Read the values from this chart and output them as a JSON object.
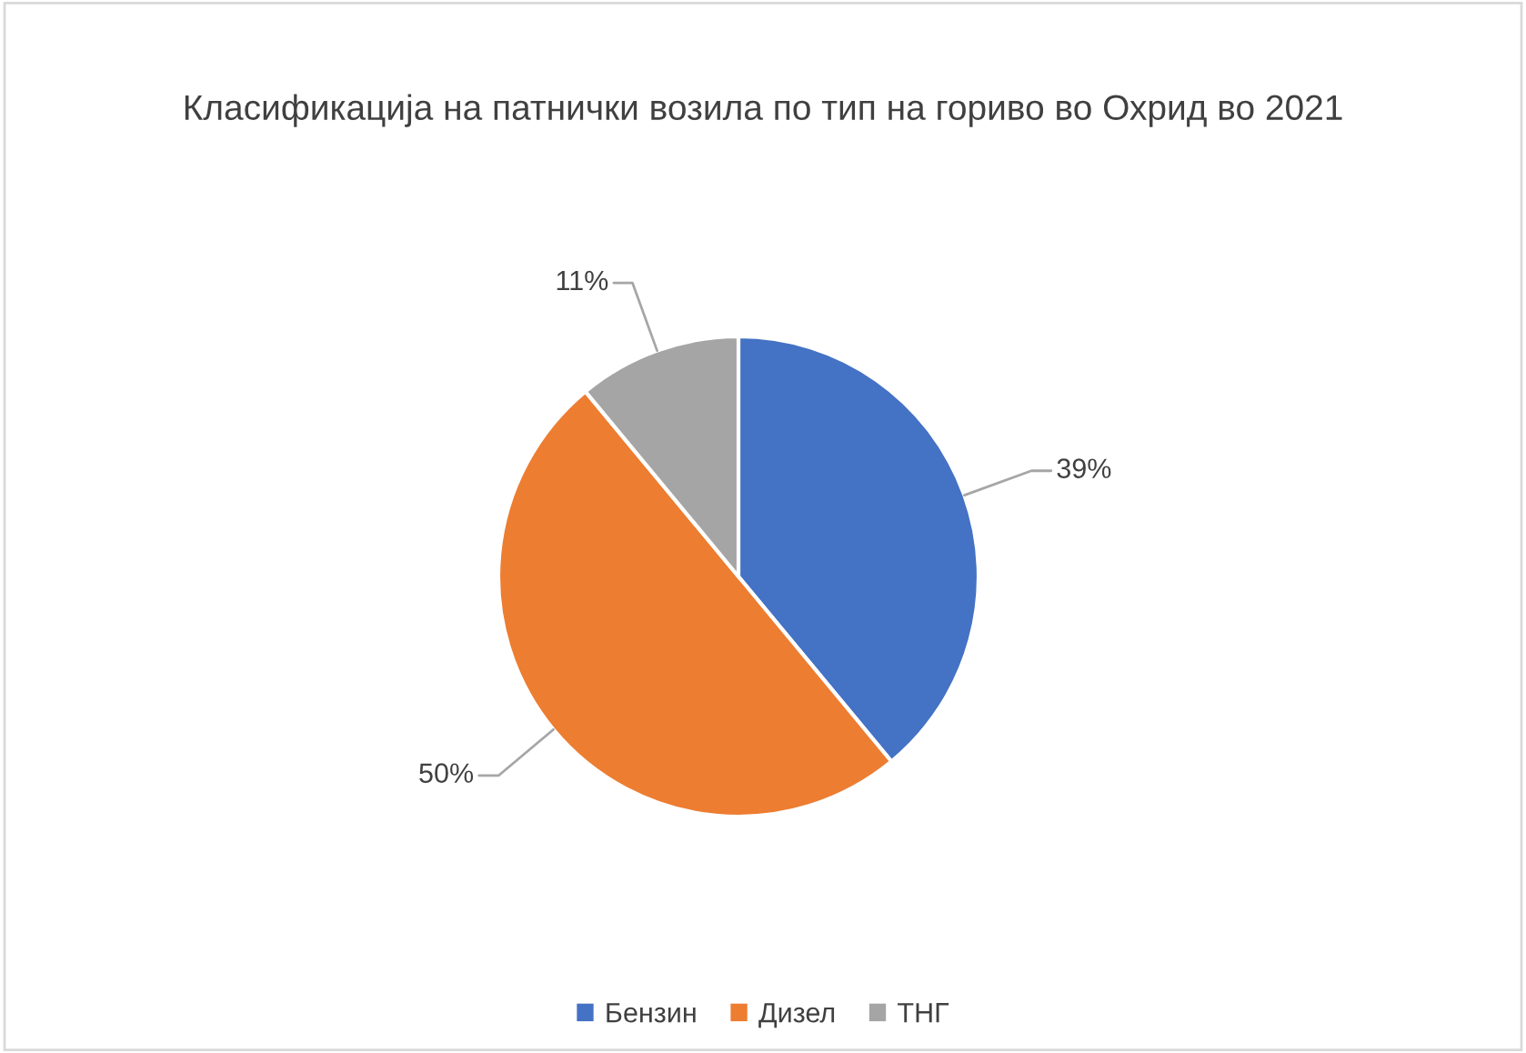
{
  "chart_data": {
    "type": "pie",
    "title": "Класификација на патнички возила по тип на гориво во Охрид во 2021",
    "categories": [
      "Бензин",
      "Дизел",
      "ТНГ"
    ],
    "values": [
      39,
      50,
      11
    ],
    "colors": [
      "#4472c4",
      "#ed7d31",
      "#a5a5a5"
    ],
    "value_labels": [
      "39%",
      "50%",
      "11%"
    ],
    "legend": "bottom"
  }
}
